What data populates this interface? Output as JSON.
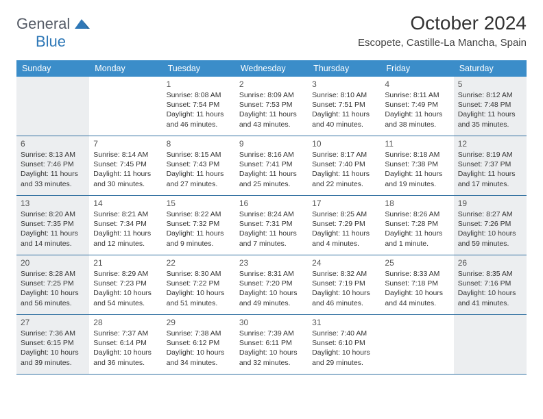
{
  "logo": {
    "part1": "General",
    "part2": "Blue",
    "shape_color": "#2f78b7",
    "text_color": "#555b66"
  },
  "title": "October 2024",
  "location": "Escopete, Castille-La Mancha, Spain",
  "header_bg": "#3b8dc9",
  "row_border": "#2f6fa0",
  "shaded_bg": "#eceef0",
  "weekdays": [
    "Sunday",
    "Monday",
    "Tuesday",
    "Wednesday",
    "Thursday",
    "Friday",
    "Saturday"
  ],
  "weeks": [
    [
      {
        "shaded": true
      },
      {},
      {
        "num": "1",
        "sunrise": "Sunrise: 8:08 AM",
        "sunset": "Sunset: 7:54 PM",
        "daylight": "Daylight: 11 hours and 46 minutes."
      },
      {
        "num": "2",
        "sunrise": "Sunrise: 8:09 AM",
        "sunset": "Sunset: 7:53 PM",
        "daylight": "Daylight: 11 hours and 43 minutes."
      },
      {
        "num": "3",
        "sunrise": "Sunrise: 8:10 AM",
        "sunset": "Sunset: 7:51 PM",
        "daylight": "Daylight: 11 hours and 40 minutes."
      },
      {
        "num": "4",
        "sunrise": "Sunrise: 8:11 AM",
        "sunset": "Sunset: 7:49 PM",
        "daylight": "Daylight: 11 hours and 38 minutes."
      },
      {
        "num": "5",
        "sunrise": "Sunrise: 8:12 AM",
        "sunset": "Sunset: 7:48 PM",
        "daylight": "Daylight: 11 hours and 35 minutes.",
        "shaded": true
      }
    ],
    [
      {
        "num": "6",
        "sunrise": "Sunrise: 8:13 AM",
        "sunset": "Sunset: 7:46 PM",
        "daylight": "Daylight: 11 hours and 33 minutes.",
        "shaded": true
      },
      {
        "num": "7",
        "sunrise": "Sunrise: 8:14 AM",
        "sunset": "Sunset: 7:45 PM",
        "daylight": "Daylight: 11 hours and 30 minutes."
      },
      {
        "num": "8",
        "sunrise": "Sunrise: 8:15 AM",
        "sunset": "Sunset: 7:43 PM",
        "daylight": "Daylight: 11 hours and 27 minutes."
      },
      {
        "num": "9",
        "sunrise": "Sunrise: 8:16 AM",
        "sunset": "Sunset: 7:41 PM",
        "daylight": "Daylight: 11 hours and 25 minutes."
      },
      {
        "num": "10",
        "sunrise": "Sunrise: 8:17 AM",
        "sunset": "Sunset: 7:40 PM",
        "daylight": "Daylight: 11 hours and 22 minutes."
      },
      {
        "num": "11",
        "sunrise": "Sunrise: 8:18 AM",
        "sunset": "Sunset: 7:38 PM",
        "daylight": "Daylight: 11 hours and 19 minutes."
      },
      {
        "num": "12",
        "sunrise": "Sunrise: 8:19 AM",
        "sunset": "Sunset: 7:37 PM",
        "daylight": "Daylight: 11 hours and 17 minutes.",
        "shaded": true
      }
    ],
    [
      {
        "num": "13",
        "sunrise": "Sunrise: 8:20 AM",
        "sunset": "Sunset: 7:35 PM",
        "daylight": "Daylight: 11 hours and 14 minutes.",
        "shaded": true
      },
      {
        "num": "14",
        "sunrise": "Sunrise: 8:21 AM",
        "sunset": "Sunset: 7:34 PM",
        "daylight": "Daylight: 11 hours and 12 minutes."
      },
      {
        "num": "15",
        "sunrise": "Sunrise: 8:22 AM",
        "sunset": "Sunset: 7:32 PM",
        "daylight": "Daylight: 11 hours and 9 minutes."
      },
      {
        "num": "16",
        "sunrise": "Sunrise: 8:24 AM",
        "sunset": "Sunset: 7:31 PM",
        "daylight": "Daylight: 11 hours and 7 minutes."
      },
      {
        "num": "17",
        "sunrise": "Sunrise: 8:25 AM",
        "sunset": "Sunset: 7:29 PM",
        "daylight": "Daylight: 11 hours and 4 minutes."
      },
      {
        "num": "18",
        "sunrise": "Sunrise: 8:26 AM",
        "sunset": "Sunset: 7:28 PM",
        "daylight": "Daylight: 11 hours and 1 minute."
      },
      {
        "num": "19",
        "sunrise": "Sunrise: 8:27 AM",
        "sunset": "Sunset: 7:26 PM",
        "daylight": "Daylight: 10 hours and 59 minutes.",
        "shaded": true
      }
    ],
    [
      {
        "num": "20",
        "sunrise": "Sunrise: 8:28 AM",
        "sunset": "Sunset: 7:25 PM",
        "daylight": "Daylight: 10 hours and 56 minutes.",
        "shaded": true
      },
      {
        "num": "21",
        "sunrise": "Sunrise: 8:29 AM",
        "sunset": "Sunset: 7:23 PM",
        "daylight": "Daylight: 10 hours and 54 minutes."
      },
      {
        "num": "22",
        "sunrise": "Sunrise: 8:30 AM",
        "sunset": "Sunset: 7:22 PM",
        "daylight": "Daylight: 10 hours and 51 minutes."
      },
      {
        "num": "23",
        "sunrise": "Sunrise: 8:31 AM",
        "sunset": "Sunset: 7:20 PM",
        "daylight": "Daylight: 10 hours and 49 minutes."
      },
      {
        "num": "24",
        "sunrise": "Sunrise: 8:32 AM",
        "sunset": "Sunset: 7:19 PM",
        "daylight": "Daylight: 10 hours and 46 minutes."
      },
      {
        "num": "25",
        "sunrise": "Sunrise: 8:33 AM",
        "sunset": "Sunset: 7:18 PM",
        "daylight": "Daylight: 10 hours and 44 minutes."
      },
      {
        "num": "26",
        "sunrise": "Sunrise: 8:35 AM",
        "sunset": "Sunset: 7:16 PM",
        "daylight": "Daylight: 10 hours and 41 minutes.",
        "shaded": true
      }
    ],
    [
      {
        "num": "27",
        "sunrise": "Sunrise: 7:36 AM",
        "sunset": "Sunset: 6:15 PM",
        "daylight": "Daylight: 10 hours and 39 minutes.",
        "shaded": true
      },
      {
        "num": "28",
        "sunrise": "Sunrise: 7:37 AM",
        "sunset": "Sunset: 6:14 PM",
        "daylight": "Daylight: 10 hours and 36 minutes."
      },
      {
        "num": "29",
        "sunrise": "Sunrise: 7:38 AM",
        "sunset": "Sunset: 6:12 PM",
        "daylight": "Daylight: 10 hours and 34 minutes."
      },
      {
        "num": "30",
        "sunrise": "Sunrise: 7:39 AM",
        "sunset": "Sunset: 6:11 PM",
        "daylight": "Daylight: 10 hours and 32 minutes."
      },
      {
        "num": "31",
        "sunrise": "Sunrise: 7:40 AM",
        "sunset": "Sunset: 6:10 PM",
        "daylight": "Daylight: 10 hours and 29 minutes."
      },
      {},
      {
        "shaded": true
      }
    ]
  ]
}
